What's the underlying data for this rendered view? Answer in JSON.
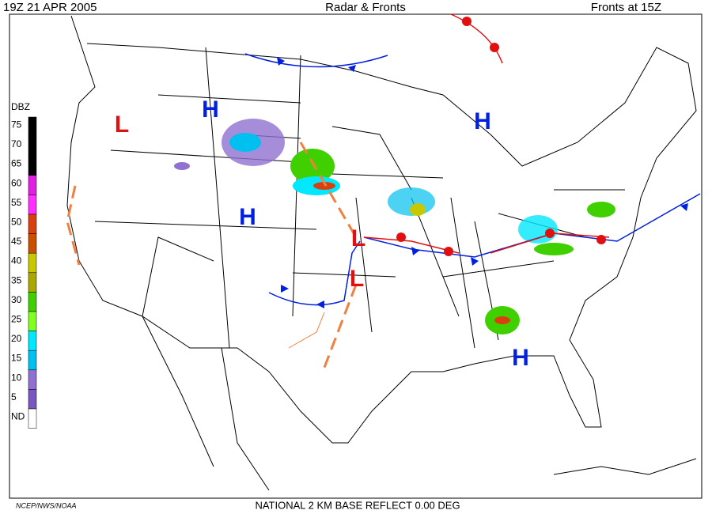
{
  "header": {
    "time": "19Z  21 APR  2005",
    "title": "Radar & Fronts",
    "fronts_time": "Fronts at 15Z"
  },
  "legend": {
    "title": "DBZ",
    "items": [
      {
        "label": "75",
        "color": "#000000"
      },
      {
        "label": "70",
        "color": "#000000"
      },
      {
        "label": "65",
        "color": "#000000"
      },
      {
        "label": "60",
        "color": "#e020e0"
      },
      {
        "label": "55",
        "color": "#ff30ff"
      },
      {
        "label": "50",
        "color": "#d84010"
      },
      {
        "label": "45",
        "color": "#c85000"
      },
      {
        "label": "40",
        "color": "#c8c800"
      },
      {
        "label": "35",
        "color": "#a8a800"
      },
      {
        "label": "30",
        "color": "#40d000"
      },
      {
        "label": "25",
        "color": "#80ff20"
      },
      {
        "label": "20",
        "color": "#00e8ff"
      },
      {
        "label": "15",
        "color": "#00c0f0"
      },
      {
        "label": "10",
        "color": "#9070d0"
      },
      {
        "label": "5",
        "color": "#7858c0"
      },
      {
        "label": "ND",
        "color": "#ffffff"
      }
    ]
  },
  "pressure_centers": [
    {
      "label": "H",
      "color": "#0020e0"
    },
    {
      "label": "L",
      "color": "#e01010"
    },
    {
      "label": "H",
      "color": "#0020e0"
    },
    {
      "label": "H",
      "color": "#0020e0"
    },
    {
      "label": "L",
      "color": "#e01010"
    },
    {
      "label": "L",
      "color": "#e01010"
    },
    {
      "label": "H",
      "color": "#0020e0"
    }
  ],
  "footer": {
    "credit": "NCEP/NWS/NOAA",
    "product": "NATIONAL 2 KM BASE REFLECT 0.00 DEG"
  }
}
